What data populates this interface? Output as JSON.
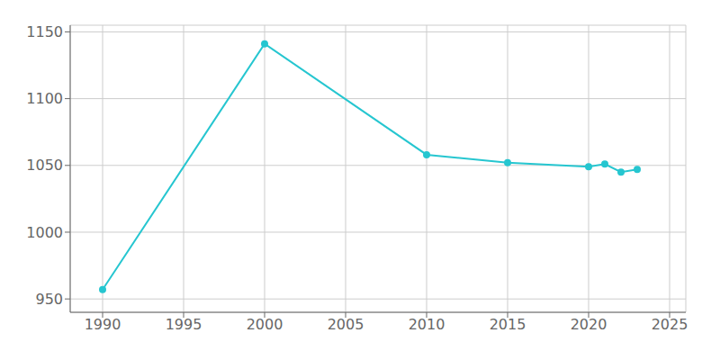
{
  "chart_data": {
    "type": "line",
    "x": [
      1990,
      2000,
      2010,
      2015,
      2020,
      2021,
      2022,
      2023
    ],
    "values": [
      957,
      1141,
      1058,
      1052,
      1049,
      1051,
      1045,
      1047
    ],
    "color": "#26c6d0",
    "marker": "circle",
    "xlim": [
      1988,
      2026
    ],
    "ylim": [
      940,
      1155
    ],
    "xticks": [
      1990,
      1995,
      2000,
      2005,
      2010,
      2015,
      2020,
      2025
    ],
    "yticks": [
      950,
      1000,
      1050,
      1100,
      1150
    ],
    "grid": true
  }
}
